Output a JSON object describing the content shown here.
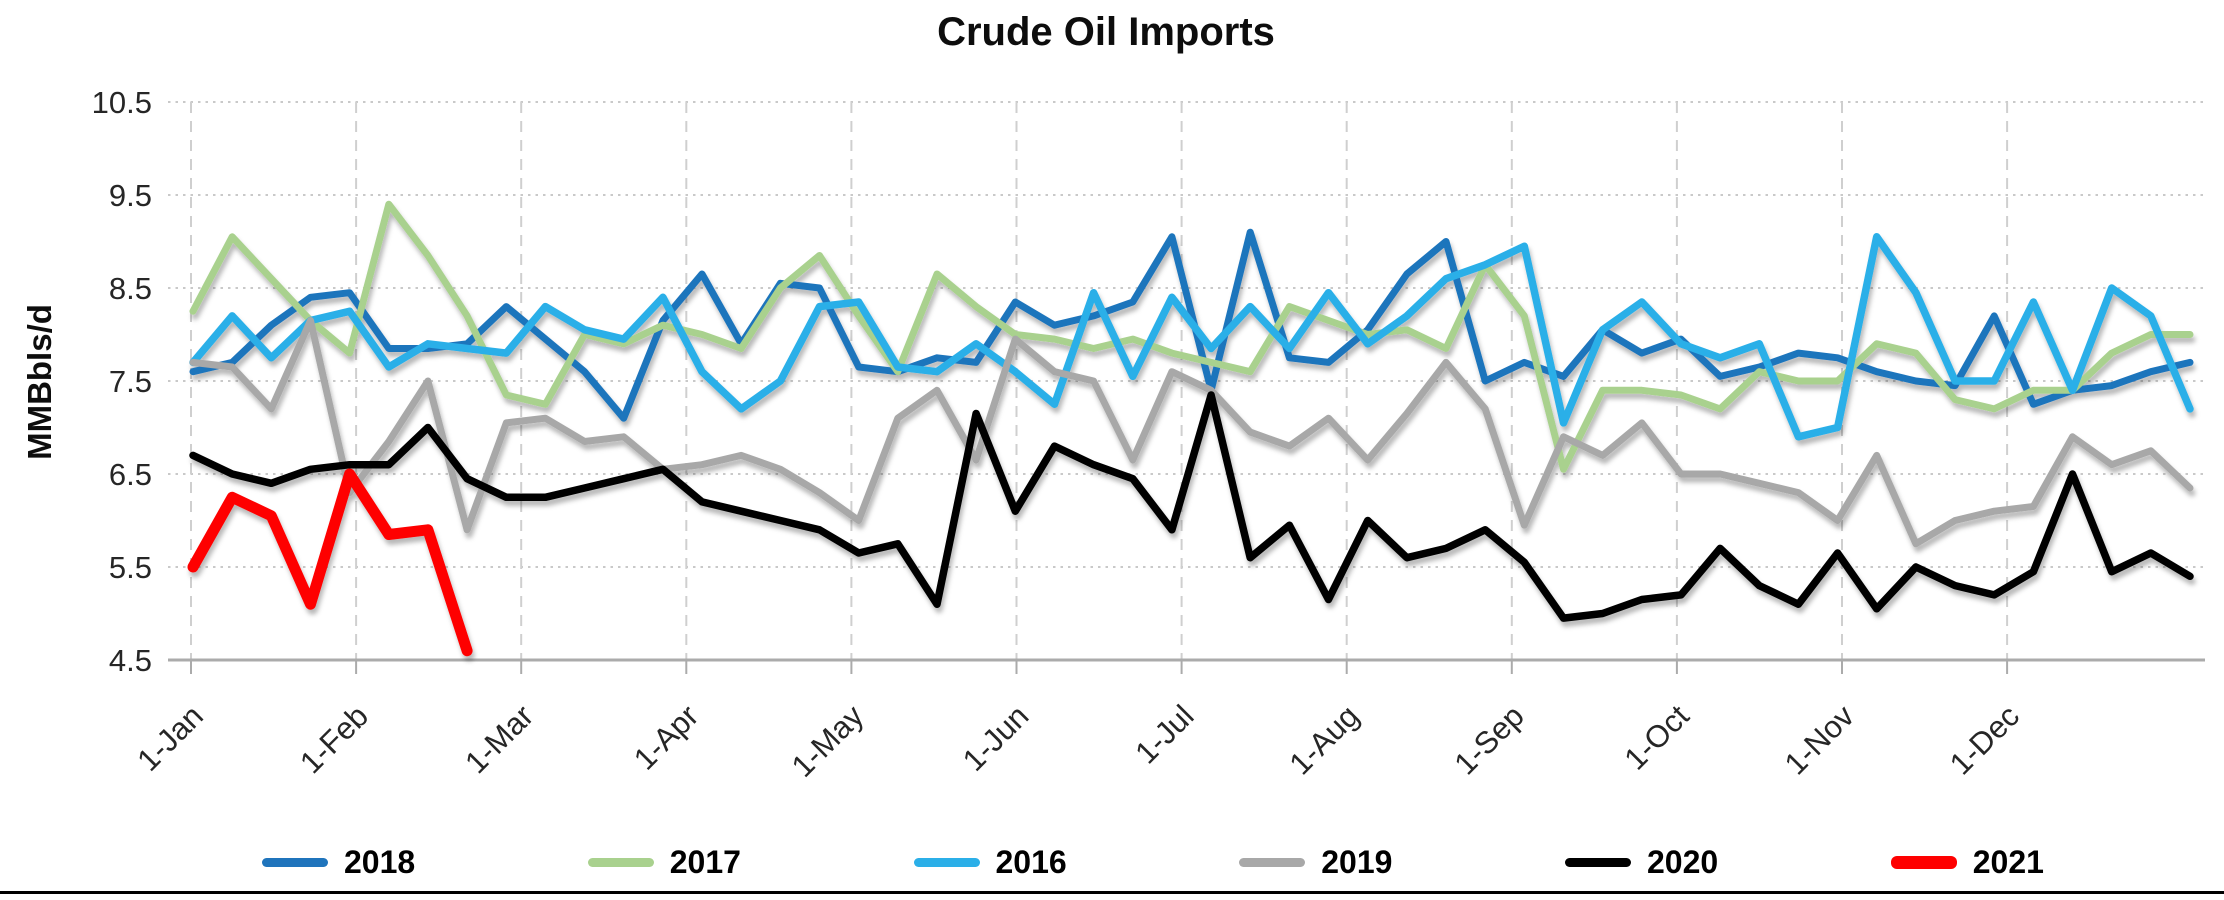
{
  "chart_data": {
    "type": "line",
    "title": "Crude Oil Imports",
    "ylabel": "MMBbls/d",
    "xlabel": "",
    "ylim": [
      4.5,
      10.5
    ],
    "yticks": [
      10.5,
      9.5,
      8.5,
      7.5,
      6.5,
      5.5,
      4.5
    ],
    "xticklabels": [
      "1-Jan",
      "1-Feb",
      "1-Mar",
      "1-Apr",
      "1-May",
      "1-Jun",
      "1-Jul",
      "1-Aug",
      "1-Sep",
      "1-Oct",
      "1-Nov",
      "1-Dec"
    ],
    "x_unit": "weekly data points, one per week starting 1-Jan",
    "grid": "horizontal dotted, vertical dashed at month starts",
    "legend_position": "bottom",
    "series": [
      {
        "name": "2018",
        "color": "#1F74BC",
        "width": 7,
        "values": [
          7.6,
          7.7,
          8.1,
          8.4,
          8.45,
          7.85,
          7.85,
          7.9,
          8.3,
          7.95,
          7.6,
          7.1,
          8.15,
          8.65,
          7.9,
          8.55,
          8.5,
          7.65,
          7.6,
          7.75,
          7.7,
          8.35,
          8.1,
          8.2,
          8.35,
          9.05,
          7.4,
          9.1,
          7.75,
          7.7,
          8.05,
          8.65,
          9.0,
          7.5,
          7.7,
          7.55,
          8.05,
          7.8,
          7.95,
          7.55,
          7.65,
          7.8,
          7.75,
          7.6,
          7.5,
          7.45,
          8.2,
          7.25,
          7.4,
          7.45,
          7.6,
          7.7
        ]
      },
      {
        "name": "2017",
        "color": "#A9D18E",
        "width": 7,
        "values": [
          8.25,
          9.05,
          8.6,
          8.15,
          7.8,
          9.4,
          8.85,
          8.2,
          7.35,
          7.25,
          8.0,
          7.9,
          8.1,
          8.0,
          7.85,
          8.5,
          8.85,
          8.2,
          7.6,
          8.65,
          8.3,
          8.0,
          7.95,
          7.85,
          7.95,
          7.8,
          7.7,
          7.6,
          8.3,
          8.15,
          8.0,
          8.05,
          7.85,
          8.75,
          8.2,
          6.55,
          7.4,
          7.4,
          7.35,
          7.2,
          7.6,
          7.5,
          7.5,
          7.9,
          7.8,
          7.3,
          7.2,
          7.4,
          7.4,
          7.8,
          8.0,
          8.0
        ]
      },
      {
        "name": "2016",
        "color": "#2BAFE8",
        "width": 7.5,
        "values": [
          7.7,
          8.2,
          7.75,
          8.15,
          8.25,
          7.65,
          7.9,
          7.85,
          7.8,
          8.3,
          8.05,
          7.95,
          8.4,
          7.6,
          7.2,
          7.5,
          8.3,
          8.35,
          7.65,
          7.6,
          7.9,
          7.6,
          7.25,
          8.45,
          7.55,
          8.4,
          7.85,
          8.3,
          7.85,
          8.45,
          7.9,
          8.2,
          8.6,
          8.75,
          8.95,
          7.05,
          8.05,
          8.35,
          7.9,
          7.75,
          7.9,
          6.9,
          7.0,
          9.05,
          8.45,
          7.5,
          7.5,
          8.35,
          7.4,
          8.5,
          8.2,
          7.2
        ]
      },
      {
        "name": "2019",
        "color": "#A8A8A8",
        "width": 7,
        "values": [
          7.7,
          7.65,
          7.2,
          8.15,
          6.3,
          6.85,
          7.5,
          5.9,
          7.05,
          7.1,
          6.85,
          6.9,
          6.55,
          6.6,
          6.7,
          6.55,
          6.3,
          6.0,
          7.1,
          7.4,
          6.65,
          7.95,
          7.6,
          7.5,
          6.65,
          7.6,
          7.4,
          6.95,
          6.8,
          7.1,
          6.65,
          7.15,
          7.7,
          7.2,
          5.95,
          6.9,
          6.7,
          7.05,
          6.5,
          6.5,
          6.4,
          6.3,
          6.0,
          6.7,
          5.75,
          6.0,
          6.1,
          6.15,
          6.9,
          6.6,
          6.75,
          6.35
        ]
      },
      {
        "name": "2020",
        "color": "#000000",
        "width": 7.5,
        "values": [
          6.7,
          6.5,
          6.4,
          6.55,
          6.6,
          6.6,
          7.0,
          6.45,
          6.25,
          6.25,
          6.35,
          6.45,
          6.55,
          6.2,
          6.1,
          6.0,
          5.9,
          5.65,
          5.75,
          5.1,
          7.15,
          6.1,
          6.8,
          6.6,
          6.45,
          5.9,
          7.35,
          5.6,
          5.95,
          5.15,
          6.0,
          5.6,
          5.7,
          5.9,
          5.55,
          4.95,
          5.0,
          5.15,
          5.2,
          5.7,
          5.3,
          5.1,
          5.65,
          5.05,
          5.5,
          5.3,
          5.2,
          5.45,
          6.5,
          5.45,
          5.65,
          5.4
        ]
      },
      {
        "name": "2021",
        "color": "#FE0000",
        "width": 11,
        "values": [
          5.5,
          6.25,
          6.05,
          5.1,
          6.5,
          5.85,
          5.9,
          4.6
        ]
      }
    ]
  }
}
